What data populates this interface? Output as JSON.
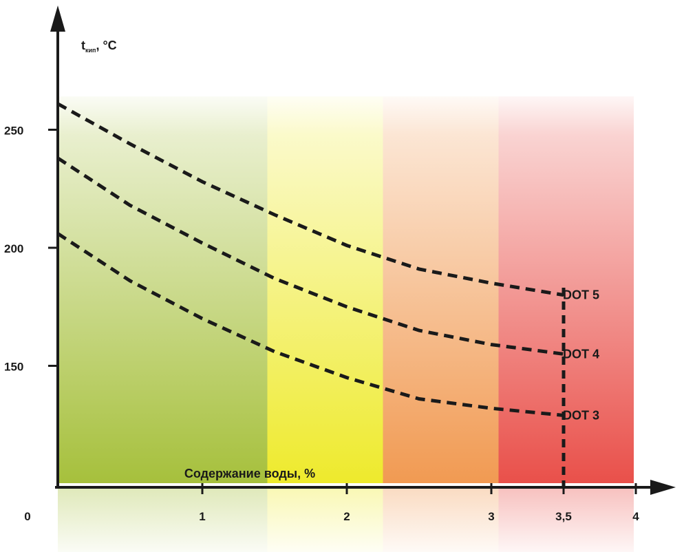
{
  "chart_data": {
    "type": "line",
    "title": "",
    "xlabel": "Содержание воды, %",
    "ylabel_main": "t",
    "ylabel_sub": "кип",
    "ylabel_unit": ", °C",
    "xlim": [
      0,
      4
    ],
    "ylim": [
      0,
      290
    ],
    "x_ticks": [
      {
        "value": 0,
        "label": "0"
      },
      {
        "value": 1,
        "label": "1"
      },
      {
        "value": 2,
        "label": "2"
      },
      {
        "value": 3,
        "label": "3"
      },
      {
        "value": 3.5,
        "label": "3,5"
      },
      {
        "value": 4,
        "label": "4"
      }
    ],
    "y_ticks": [
      {
        "value": 150,
        "label": "150"
      },
      {
        "value": 200,
        "label": "200"
      },
      {
        "value": 250,
        "label": "250"
      }
    ],
    "series": [
      {
        "name": "DOT 5",
        "x": [
          0,
          0.5,
          1,
          1.5,
          2,
          2.5,
          3,
          3.5
        ],
        "y": [
          261,
          244,
          228,
          214,
          201,
          191,
          185,
          180
        ]
      },
      {
        "name": "DOT 4",
        "x": [
          0,
          0.5,
          1,
          1.5,
          2,
          2.5,
          3,
          3.5
        ],
        "y": [
          238,
          218,
          202,
          187,
          175,
          165,
          159,
          155
        ]
      },
      {
        "name": "DOT 3",
        "x": [
          0,
          0.5,
          1,
          1.5,
          2,
          2.5,
          3,
          3.5
        ],
        "y": [
          206,
          186,
          170,
          156,
          145,
          136,
          132,
          129
        ]
      }
    ],
    "reference_line": {
      "x": 3.5
    },
    "zones": [
      {
        "from": 0,
        "to": 1.45,
        "color": "#a6c03c"
      },
      {
        "from": 1.45,
        "to": 2.25,
        "color": "#eeea2c"
      },
      {
        "from": 2.25,
        "to": 3.05,
        "color": "#f19a52"
      },
      {
        "from": 3.05,
        "to": 4.05,
        "color": "#e9504a"
      }
    ],
    "colors": {
      "axis": "#1a1a1a",
      "series": "#1a1a1a"
    },
    "grid": false,
    "legend": "labels at line ends"
  }
}
